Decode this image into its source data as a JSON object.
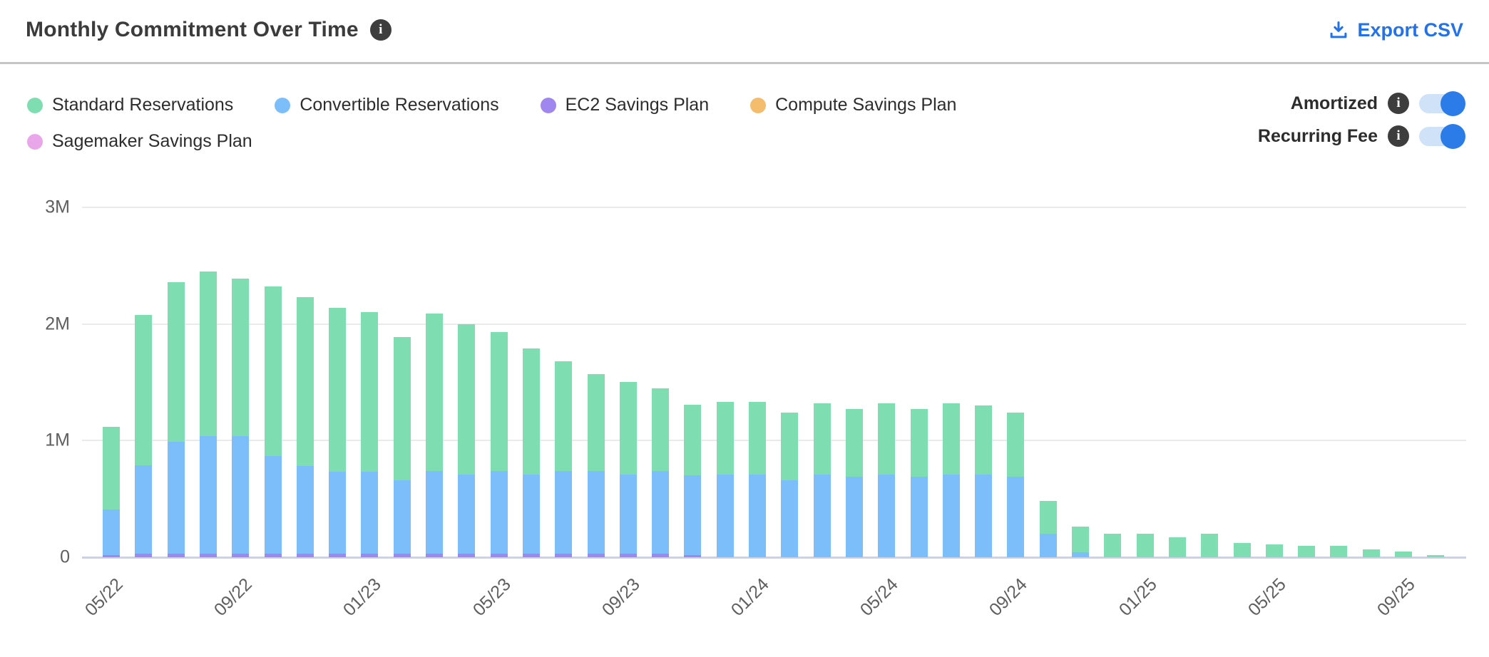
{
  "header": {
    "title": "Monthly Commitment Over Time",
    "title_info_icon": "i",
    "export_label": "Export CSV"
  },
  "toggles": [
    {
      "label": "Amortized",
      "info_icon": "i",
      "on": true
    },
    {
      "label": "Recurring Fee",
      "info_icon": "i",
      "on": true
    }
  ],
  "colors": {
    "standard": "#7edeb1",
    "convertible": "#7cbef9",
    "ec2_sp": "#a087f0",
    "compute_sp": "#f4bd6e",
    "sagemaker_sp": "#e9a6e9",
    "accent_blue": "#2472e8",
    "toggle_knob": "#2b7ce9",
    "toggle_track": "#cfe2f8",
    "gridline": "#eaeaea",
    "baseline": "#c9d2e8"
  },
  "legend": [
    {
      "label": "Standard Reservations",
      "color": "#7edeb1"
    },
    {
      "label": "Convertible Reservations",
      "color": "#7cbef9"
    },
    {
      "label": "EC2 Savings Plan",
      "color": "#a087f0"
    },
    {
      "label": "Compute Savings Plan",
      "color": "#f4bd6e"
    },
    {
      "label": "Sagemaker Savings Plan",
      "color": "#e9a6e9"
    }
  ],
  "chart_data": {
    "type": "bar",
    "stacked": true,
    "title": "Monthly Commitment Over Time",
    "unit": "M (USD)",
    "ylim": [
      0,
      3
    ],
    "grid": true,
    "y_ticks": [
      {
        "label": "0",
        "value": 0
      },
      {
        "label": "1M",
        "value": 1
      },
      {
        "label": "2M",
        "value": 2
      },
      {
        "label": "3M",
        "value": 3
      }
    ],
    "x_tick_labels": [
      "05/22",
      "09/22",
      "01/23",
      "05/23",
      "09/23",
      "01/24",
      "05/24",
      "09/24",
      "01/25",
      "05/25",
      "09/25"
    ],
    "x_tick_every": 4,
    "categories": [
      "05/22",
      "06/22",
      "07/22",
      "08/22",
      "09/22",
      "10/22",
      "11/22",
      "12/22",
      "01/23",
      "02/23",
      "03/23",
      "04/23",
      "05/23",
      "06/23",
      "07/23",
      "08/23",
      "09/23",
      "10/23",
      "11/23",
      "12/23",
      "01/24",
      "02/24",
      "03/24",
      "04/24",
      "05/24",
      "06/24",
      "07/24",
      "08/24",
      "09/24",
      "10/24",
      "11/24",
      "12/24",
      "01/25",
      "02/25",
      "03/25",
      "04/25",
      "05/25",
      "06/25",
      "07/25",
      "08/25",
      "09/25",
      "10/25"
    ],
    "series": [
      {
        "name": "EC2 Savings Plan",
        "color": "#a087f0",
        "values": [
          0.02,
          0.03,
          0.03,
          0.03,
          0.03,
          0.03,
          0.03,
          0.03,
          0.03,
          0.03,
          0.03,
          0.03,
          0.03,
          0.03,
          0.03,
          0.03,
          0.03,
          0.03,
          0.02,
          0,
          0,
          0,
          0,
          0,
          0,
          0,
          0,
          0,
          0,
          0,
          0,
          0,
          0,
          0,
          0,
          0,
          0,
          0,
          0,
          0,
          0,
          0
        ]
      },
      {
        "name": "Convertible Reservations",
        "color": "#7cbef9",
        "values": [
          0.39,
          0.76,
          0.96,
          1.01,
          1.01,
          0.84,
          0.75,
          0.7,
          0.7,
          0.63,
          0.71,
          0.68,
          0.71,
          0.68,
          0.71,
          0.71,
          0.68,
          0.71,
          0.68,
          0.71,
          0.71,
          0.66,
          0.71,
          0.69,
          0.71,
          0.69,
          0.71,
          0.71,
          0.69,
          0.2,
          0.04,
          0,
          0,
          0,
          0,
          0,
          0,
          0,
          0,
          0,
          0,
          0
        ]
      },
      {
        "name": "Standard Reservations",
        "color": "#7edeb1",
        "values": [
          0.71,
          1.29,
          1.37,
          1.41,
          1.35,
          1.45,
          1.45,
          1.41,
          1.37,
          1.23,
          1.35,
          1.29,
          1.19,
          1.08,
          0.94,
          0.83,
          0.79,
          0.71,
          0.61,
          0.62,
          0.62,
          0.58,
          0.61,
          0.58,
          0.61,
          0.58,
          0.61,
          0.59,
          0.55,
          0.28,
          0.22,
          0.2,
          0.2,
          0.17,
          0.2,
          0.12,
          0.11,
          0.1,
          0.1,
          0.07,
          0.05,
          0.02
        ]
      },
      {
        "name": "Compute Savings Plan",
        "color": "#f4bd6e",
        "values": [
          0,
          0,
          0,
          0,
          0,
          0,
          0,
          0,
          0,
          0,
          0,
          0,
          0,
          0,
          0,
          0,
          0,
          0,
          0,
          0,
          0,
          0,
          0,
          0,
          0,
          0,
          0,
          0,
          0,
          0,
          0,
          0,
          0,
          0,
          0,
          0,
          0,
          0,
          0,
          0,
          0,
          0
        ]
      },
      {
        "name": "Sagemaker Savings Plan",
        "color": "#e9a6e9",
        "values": [
          0,
          0,
          0,
          0,
          0,
          0,
          0,
          0,
          0,
          0,
          0,
          0,
          0,
          0,
          0,
          0,
          0,
          0,
          0,
          0,
          0,
          0,
          0,
          0,
          0,
          0,
          0,
          0,
          0,
          0,
          0,
          0,
          0,
          0,
          0,
          0,
          0,
          0,
          0,
          0,
          0,
          0
        ]
      }
    ],
    "legend_position": "top-left"
  }
}
